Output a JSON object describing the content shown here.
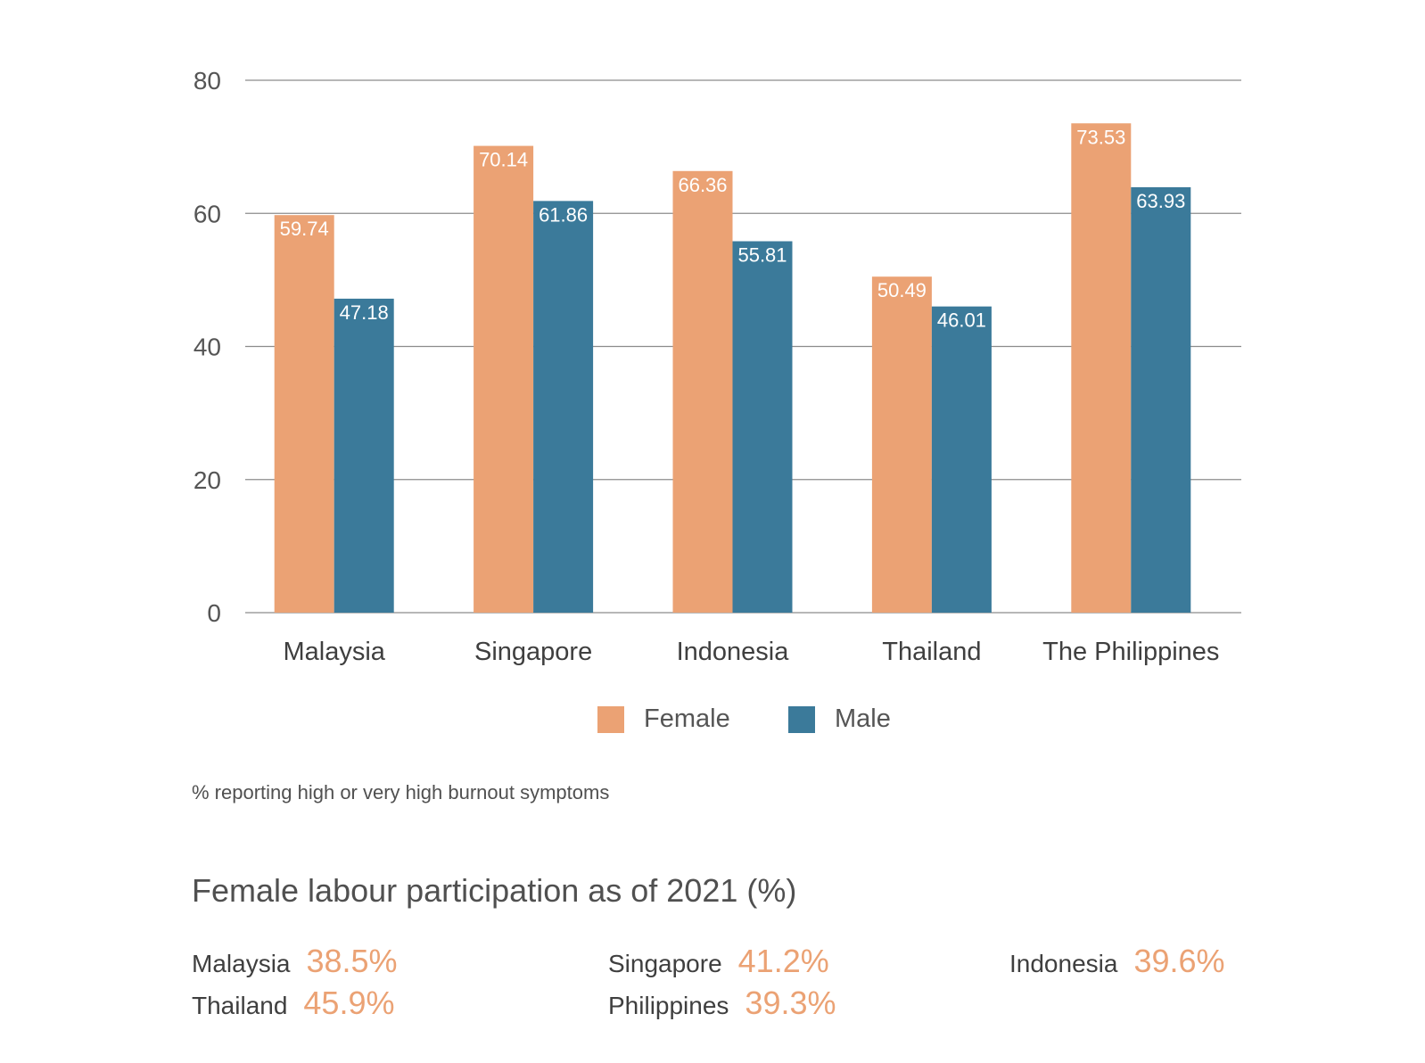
{
  "colors": {
    "female": "#EBA274",
    "male": "#3B7A9A",
    "grid": "#8c8c8c",
    "stat_value": "#EBA274"
  },
  "chart_data": {
    "type": "bar",
    "categories": [
      "Malaysia",
      "Singapore",
      "Indonesia",
      "Thailand",
      "The Philippines"
    ],
    "series": [
      {
        "name": "Female",
        "values": [
          59.74,
          70.14,
          66.36,
          50.49,
          73.53
        ]
      },
      {
        "name": "Male",
        "values": [
          47.18,
          61.86,
          55.81,
          46.01,
          63.93
        ]
      }
    ],
    "value_labels": [
      [
        "59.74",
        "70.14",
        "66.36",
        "50.49",
        "73.53"
      ],
      [
        "47.18",
        "61.86",
        "55.81",
        "46.01",
        "63.93"
      ]
    ],
    "yticks": [
      "0",
      "20",
      "40",
      "60",
      "80"
    ],
    "ylim": [
      0,
      80
    ],
    "grid": true,
    "legend_position": "bottom-center",
    "note": "% reporting high or very high burnout symptoms"
  },
  "labour": {
    "title": "Female labour participation as of 2021 (%)",
    "stats": [
      {
        "country": "Malaysia",
        "value": "38.5%"
      },
      {
        "country": "Singapore",
        "value": "41.2%"
      },
      {
        "country": "Indonesia",
        "value": "39.6%"
      },
      {
        "country": "Thailand",
        "value": "45.9%"
      },
      {
        "country": "Philippines",
        "value": "39.3%"
      }
    ]
  }
}
